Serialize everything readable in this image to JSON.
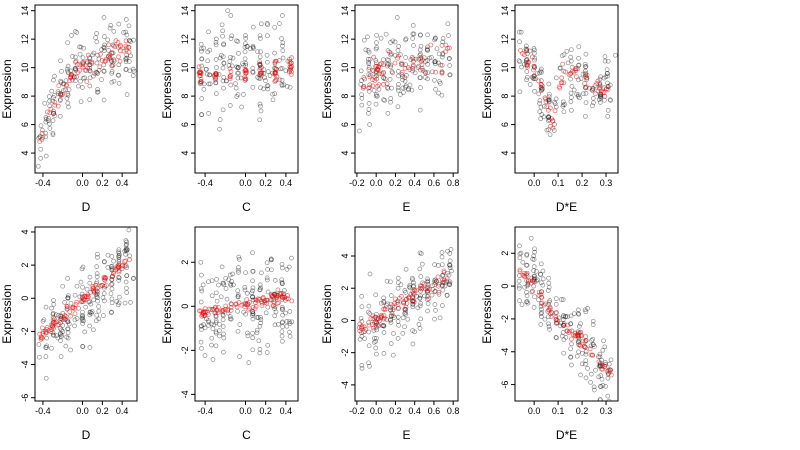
{
  "chart_data": [
    {
      "type": "scatter",
      "xlabel": "D",
      "ylabel": "Expression",
      "xlim": [
        -0.48,
        0.55
      ],
      "ylim": [
        2.6,
        14.4
      ],
      "xticks": [
        {
          "v": -0.4,
          "label": "-0.4"
        },
        {
          "v": 0.0,
          "label": "0.0"
        },
        {
          "v": 0.2,
          "label": "0.2"
        },
        {
          "v": 0.4,
          "label": "0.4"
        }
      ],
      "yticks": [
        {
          "v": 4,
          "label": "4"
        },
        {
          "v": 6,
          "label": "6"
        },
        {
          "v": 8,
          "label": "8"
        },
        {
          "v": 10,
          "label": "10"
        },
        {
          "v": 12,
          "label": "12"
        },
        {
          "v": 14,
          "label": "14"
        }
      ],
      "red_trend": [
        [
          -0.45,
          4.8
        ],
        [
          -0.35,
          6.6
        ],
        [
          -0.25,
          8.0
        ],
        [
          -0.1,
          9.4
        ],
        [
          0.0,
          10.0
        ],
        [
          0.1,
          10.3
        ],
        [
          0.2,
          10.6
        ],
        [
          0.3,
          10.9
        ],
        [
          0.45,
          11.3
        ]
      ],
      "black_trend": [
        [
          -0.45,
          4.3
        ],
        [
          -0.35,
          6.2
        ],
        [
          -0.2,
          8.6
        ],
        [
          -0.05,
          9.7
        ],
        [
          0.1,
          10.3
        ],
        [
          0.3,
          10.7
        ],
        [
          0.5,
          10.9
        ]
      ],
      "spread": 1.6,
      "red_spread": 0.7,
      "red_strips": [],
      "n_black": 180,
      "n_red": 70,
      "seed": 1
    },
    {
      "type": "scatter",
      "xlabel": "C",
      "ylabel": "Expression",
      "xlim": [
        -0.5,
        0.52
      ],
      "ylim": [
        2.6,
        14.4
      ],
      "xticks": [
        {
          "v": -0.4,
          "label": "-0.4"
        },
        {
          "v": 0.0,
          "label": "0.0"
        },
        {
          "v": 0.2,
          "label": "0.2"
        },
        {
          "v": 0.4,
          "label": "0.4"
        }
      ],
      "yticks": [
        {
          "v": 4,
          "label": "4"
        },
        {
          "v": 6,
          "label": "6"
        },
        {
          "v": 8,
          "label": "8"
        },
        {
          "v": 10,
          "label": "10"
        },
        {
          "v": 12,
          "label": "12"
        },
        {
          "v": 14,
          "label": "14"
        }
      ],
      "red_trend": [
        [
          -0.45,
          9.4
        ],
        [
          0.45,
          10.0
        ]
      ],
      "black_trend": [
        [
          -0.45,
          9.6
        ],
        [
          0.45,
          9.8
        ]
      ],
      "spread": 2.2,
      "red_spread": 0.5,
      "red_strips": [
        -0.45,
        -0.3,
        -0.15,
        0.0,
        0.15,
        0.3,
        0.45
      ],
      "n_black": 180,
      "n_red": 70,
      "seed": 2
    },
    {
      "type": "scatter",
      "xlabel": "E",
      "ylabel": "Expression",
      "xlim": [
        -0.22,
        0.85
      ],
      "ylim": [
        2.6,
        14.4
      ],
      "xticks": [
        {
          "v": -0.2,
          "label": "-0.2"
        },
        {
          "v": 0.0,
          "label": "0.0"
        },
        {
          "v": 0.2,
          "label": "0.2"
        },
        {
          "v": 0.4,
          "label": "0.4"
        },
        {
          "v": 0.6,
          "label": "0.6"
        },
        {
          "v": 0.8,
          "label": "0.8"
        }
      ],
      "yticks": [
        {
          "v": 4,
          "label": "4"
        },
        {
          "v": 6,
          "label": "6"
        },
        {
          "v": 8,
          "label": "8"
        },
        {
          "v": 10,
          "label": "10"
        },
        {
          "v": 12,
          "label": "12"
        },
        {
          "v": 14,
          "label": "14"
        }
      ],
      "red_trend": [
        [
          -0.2,
          8.5
        ],
        [
          -0.1,
          9.2
        ],
        [
          0.0,
          9.6
        ],
        [
          0.2,
          10.1
        ],
        [
          0.5,
          10.4
        ],
        [
          0.8,
          10.8
        ]
      ],
      "black_trend": [
        [
          -0.2,
          9.0
        ],
        [
          0.0,
          9.8
        ],
        [
          0.4,
          10.2
        ],
        [
          0.8,
          10.6
        ]
      ],
      "spread": 2.0,
      "red_spread": 1.0,
      "red_strips": [],
      "n_black": 180,
      "n_red": 60,
      "seed": 3
    },
    {
      "type": "scatter",
      "xlabel": "D*E",
      "ylabel": "Expression",
      "xlim": [
        -0.08,
        0.35
      ],
      "ylim": [
        2.6,
        14.4
      ],
      "xticks": [
        {
          "v": 0.0,
          "label": "0.0"
        },
        {
          "v": 0.1,
          "label": "0.1"
        },
        {
          "v": 0.2,
          "label": "0.2"
        },
        {
          "v": 0.3,
          "label": "0.3"
        }
      ],
      "yticks": [
        {
          "v": 4,
          "label": "4"
        },
        {
          "v": 6,
          "label": "6"
        },
        {
          "v": 8,
          "label": "8"
        },
        {
          "v": 10,
          "label": "10"
        },
        {
          "v": 12,
          "label": "12"
        },
        {
          "v": 14,
          "label": "14"
        }
      ],
      "red_trend": [
        [
          -0.06,
          11.2
        ],
        [
          -0.02,
          10.5
        ],
        [
          0.0,
          10.0
        ],
        [
          0.03,
          8.6
        ],
        [
          0.06,
          7.0
        ],
        [
          0.08,
          5.8
        ],
        [
          0.12,
          9.8
        ],
        [
          0.2,
          9.4
        ],
        [
          0.32,
          8.2
        ]
      ],
      "black_trend": [
        [
          -0.06,
          11.0
        ],
        [
          0.0,
          10.0
        ],
        [
          0.04,
          8.0
        ],
        [
          0.08,
          5.5
        ],
        [
          0.1,
          9.5
        ],
        [
          0.33,
          8.0
        ]
      ],
      "spread": 1.5,
      "red_spread": 0.5,
      "red_strips": [],
      "n_black": 180,
      "n_red": 60,
      "seed": 4
    },
    {
      "type": "scatter",
      "xlabel": "D",
      "ylabel": "Expression",
      "xlim": [
        -0.48,
        0.55
      ],
      "ylim": [
        -6.2,
        4.3
      ],
      "xticks": [
        {
          "v": -0.4,
          "label": "-0.4"
        },
        {
          "v": 0.0,
          "label": "0.0"
        },
        {
          "v": 0.2,
          "label": "0.2"
        },
        {
          "v": 0.4,
          "label": "0.4"
        }
      ],
      "yticks": [
        {
          "v": -6,
          "label": "-6"
        },
        {
          "v": -4,
          "label": "-4"
        },
        {
          "v": -2,
          "label": "-2"
        },
        {
          "v": 0,
          "label": "0"
        },
        {
          "v": 2,
          "label": "2"
        },
        {
          "v": 4,
          "label": "4"
        }
      ],
      "red_trend": [
        [
          -0.45,
          -2.4
        ],
        [
          0.45,
          2.2
        ]
      ],
      "black_trend": [
        [
          -0.45,
          -2.8
        ],
        [
          0.45,
          2.0
        ]
      ],
      "spread": 1.6,
      "red_spread": 0.25,
      "red_strips": [],
      "n_black": 200,
      "n_red": 90,
      "seed": 5
    },
    {
      "type": "scatter",
      "xlabel": "C",
      "ylabel": "Expression",
      "xlim": [
        -0.5,
        0.52
      ],
      "ylim": [
        -4.3,
        3.6
      ],
      "xticks": [
        {
          "v": -0.4,
          "label": "-0.4"
        },
        {
          "v": 0.0,
          "label": "0.0"
        },
        {
          "v": 0.2,
          "label": "0.2"
        },
        {
          "v": 0.4,
          "label": "0.4"
        }
      ],
      "yticks": [
        {
          "v": -4,
          "label": "-4"
        },
        {
          "v": -2,
          "label": "-2"
        },
        {
          "v": 0,
          "label": "0"
        },
        {
          "v": 2,
          "label": "2"
        }
      ],
      "red_trend": [
        [
          -0.45,
          -0.3
        ],
        [
          0.45,
          0.5
        ]
      ],
      "black_trend": [
        [
          -0.45,
          -0.3
        ],
        [
          0.45,
          0.4
        ]
      ],
      "spread": 1.5,
      "red_spread": 0.2,
      "red_strips": [],
      "n_black": 200,
      "n_red": 90,
      "seed": 6
    },
    {
      "type": "scatter",
      "xlabel": "E",
      "ylabel": "Expression",
      "xlim": [
        -0.22,
        0.85
      ],
      "ylim": [
        -5.0,
        5.8
      ],
      "xticks": [
        {
          "v": -0.2,
          "label": "-0.2"
        },
        {
          "v": 0.0,
          "label": "0.0"
        },
        {
          "v": 0.2,
          "label": "0.2"
        },
        {
          "v": 0.4,
          "label": "0.4"
        },
        {
          "v": 0.6,
          "label": "0.6"
        },
        {
          "v": 0.8,
          "label": "0.8"
        }
      ],
      "yticks": [
        {
          "v": -4,
          "label": "-4"
        },
        {
          "v": -2,
          "label": "-2"
        },
        {
          "v": 0,
          "label": "0"
        },
        {
          "v": 2,
          "label": "2"
        },
        {
          "v": 4,
          "label": "4"
        }
      ],
      "red_trend": [
        [
          -0.2,
          -0.7
        ],
        [
          0.0,
          0.0
        ],
        [
          0.2,
          0.9
        ],
        [
          0.4,
          1.6
        ],
        [
          0.6,
          2.2
        ],
        [
          0.8,
          2.8
        ]
      ],
      "black_trend": [
        [
          -0.2,
          -1.0
        ],
        [
          0.0,
          0.0
        ],
        [
          0.4,
          1.5
        ],
        [
          0.8,
          3.0
        ]
      ],
      "spread": 1.6,
      "red_spread": 0.35,
      "red_strips": [],
      "n_black": 200,
      "n_red": 70,
      "seed": 7
    },
    {
      "type": "scatter",
      "xlabel": "D*E",
      "ylabel": "Expression",
      "xlim": [
        -0.08,
        0.35
      ],
      "ylim": [
        -7.0,
        3.6
      ],
      "xticks": [
        {
          "v": 0.0,
          "label": "0.0"
        },
        {
          "v": 0.1,
          "label": "0.1"
        },
        {
          "v": 0.2,
          "label": "0.2"
        },
        {
          "v": 0.3,
          "label": "0.3"
        }
      ],
      "yticks": [
        {
          "v": -6,
          "label": "-6"
        },
        {
          "v": -4,
          "label": "-4"
        },
        {
          "v": -2,
          "label": "-2"
        },
        {
          "v": 0,
          "label": "0"
        },
        {
          "v": 2,
          "label": "2"
        }
      ],
      "red_trend": [
        [
          -0.06,
          1.0
        ],
        [
          0.0,
          0.0
        ],
        [
          0.06,
          -1.4
        ],
        [
          0.1,
          -2.2
        ],
        [
          0.2,
          -3.3
        ],
        [
          0.33,
          -5.5
        ]
      ],
      "black_trend": [
        [
          -0.06,
          1.0
        ],
        [
          0.0,
          0.3
        ],
        [
          0.08,
          -1.8
        ],
        [
          0.2,
          -3.5
        ],
        [
          0.33,
          -5.8
        ]
      ],
      "spread": 1.4,
      "red_spread": 0.3,
      "red_strips": [],
      "n_black": 200,
      "n_red": 70,
      "seed": 8
    }
  ]
}
